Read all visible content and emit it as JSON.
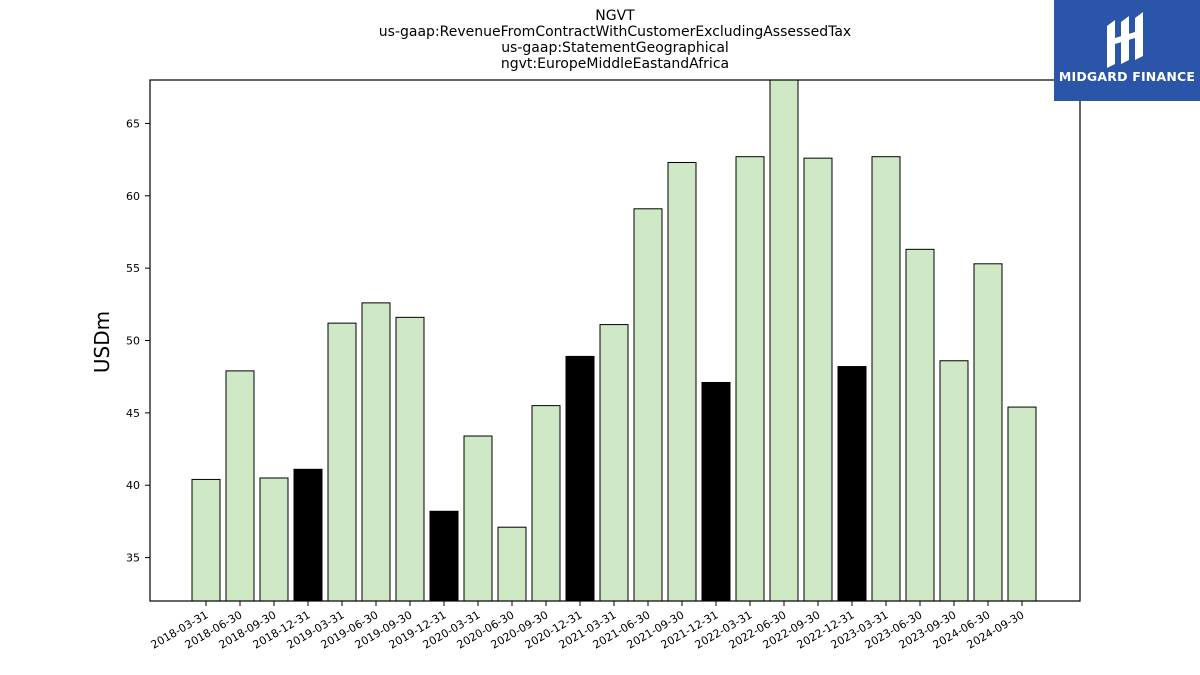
{
  "title_lines": [
    "NGVT",
    "us-gaap:RevenueFromContractWithCustomerExcludingAssessedTax",
    "us-gaap:StatementGeographical",
    "ngvt:EuropeMiddleEastandAfrica"
  ],
  "logo": {
    "text": "MIDGARD FINANCE",
    "color": "#2b55a8"
  },
  "chart_data": {
    "type": "bar",
    "ylabel": "USDm",
    "ylim": [
      32,
      68
    ],
    "yticks": [
      35,
      40,
      45,
      50,
      55,
      60,
      65
    ],
    "categories": [
      "2018-03-31",
      "2018-06-30",
      "2018-09-30",
      "2018-12-31",
      "2019-03-31",
      "2019-06-30",
      "2019-09-30",
      "2019-12-31",
      "2020-03-31",
      "2020-06-30",
      "2020-09-30",
      "2020-12-31",
      "2021-03-31",
      "2021-06-30",
      "2021-09-30",
      "2021-12-31",
      "2022-03-31",
      "2022-06-30",
      "2022-09-30",
      "2022-12-31",
      "2023-03-31",
      "2023-06-30",
      "2023-09-30",
      "2024-06-30",
      "2024-09-30"
    ],
    "values": [
      40.4,
      47.9,
      40.5,
      41.1,
      51.2,
      52.6,
      51.6,
      38.2,
      43.4,
      37.1,
      45.5,
      48.9,
      51.1,
      59.1,
      62.3,
      47.1,
      62.7,
      68.0,
      62.6,
      48.2,
      62.7,
      56.3,
      48.6,
      55.3,
      45.4
    ],
    "highlight": [
      false,
      false,
      false,
      true,
      false,
      false,
      false,
      true,
      false,
      false,
      false,
      true,
      false,
      false,
      false,
      true,
      false,
      false,
      false,
      true,
      false,
      false,
      false,
      false,
      false
    ],
    "colors": {
      "bar": "#cfe9c6",
      "highlight": "#000000",
      "edge": "#000000"
    }
  }
}
